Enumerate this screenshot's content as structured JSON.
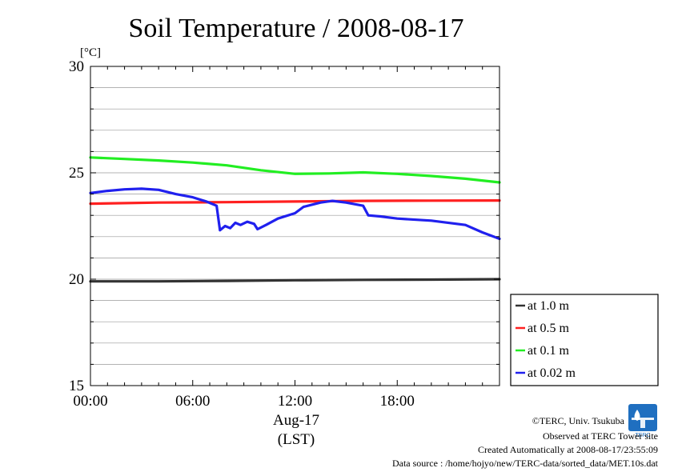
{
  "chart_data": {
    "type": "line",
    "title": "Soil Temperature / 2008-08-17",
    "ylabel": "[°C]",
    "date_label": "Aug-17",
    "time_zone_label": "(LST)",
    "ylim": [
      15,
      30
    ],
    "xlim_hours": [
      0,
      24
    ],
    "y_ticks": [
      15,
      20,
      25,
      30
    ],
    "y_tick_labels": [
      "15",
      "20",
      "25",
      "30"
    ],
    "x_ticks_hours": [
      0,
      6,
      12,
      18
    ],
    "x_tick_labels": [
      "00:00",
      "06:00",
      "12:00",
      "18:00"
    ],
    "grid": true,
    "grid_step": 1,
    "legend_position": "right",
    "series": [
      {
        "name": "at 1.0 m",
        "color": "#333333",
        "points": [
          [
            0,
            19.9
          ],
          [
            4,
            19.9
          ],
          [
            8,
            19.92
          ],
          [
            12,
            19.95
          ],
          [
            16,
            19.97
          ],
          [
            20,
            19.98
          ],
          [
            24,
            20.0
          ]
        ]
      },
      {
        "name": "at 0.5 m",
        "color": "#ff2020",
        "points": [
          [
            0,
            23.55
          ],
          [
            4,
            23.6
          ],
          [
            8,
            23.62
          ],
          [
            12,
            23.65
          ],
          [
            16,
            23.68
          ],
          [
            20,
            23.69
          ],
          [
            24,
            23.7
          ]
        ]
      },
      {
        "name": "at 0.1 m",
        "color": "#22ee22",
        "points": [
          [
            0,
            25.72
          ],
          [
            2,
            25.65
          ],
          [
            4,
            25.58
          ],
          [
            6,
            25.48
          ],
          [
            8,
            25.35
          ],
          [
            10,
            25.12
          ],
          [
            12,
            24.95
          ],
          [
            14,
            24.97
          ],
          [
            16,
            25.02
          ],
          [
            18,
            24.95
          ],
          [
            20,
            24.85
          ],
          [
            22,
            24.72
          ],
          [
            24,
            24.55
          ]
        ]
      },
      {
        "name": "at 0.02 m",
        "color": "#2020ee",
        "points": [
          [
            0,
            24.05
          ],
          [
            1,
            24.15
          ],
          [
            2,
            24.22
          ],
          [
            3,
            24.25
          ],
          [
            4,
            24.2
          ],
          [
            5,
            24.0
          ],
          [
            6,
            23.85
          ],
          [
            6.8,
            23.65
          ],
          [
            7.4,
            23.45
          ],
          [
            7.6,
            22.3
          ],
          [
            7.9,
            22.5
          ],
          [
            8.2,
            22.4
          ],
          [
            8.5,
            22.65
          ],
          [
            8.8,
            22.55
          ],
          [
            9.2,
            22.7
          ],
          [
            9.6,
            22.6
          ],
          [
            9.8,
            22.35
          ],
          [
            10.3,
            22.55
          ],
          [
            11,
            22.85
          ],
          [
            12,
            23.1
          ],
          [
            12.5,
            23.4
          ],
          [
            13.5,
            23.6
          ],
          [
            14.2,
            23.68
          ],
          [
            15,
            23.6
          ],
          [
            16,
            23.45
          ],
          [
            16.3,
            23.0
          ],
          [
            17,
            22.95
          ],
          [
            18,
            22.85
          ],
          [
            20,
            22.75
          ],
          [
            22,
            22.55
          ],
          [
            23,
            22.2
          ],
          [
            24,
            21.9
          ]
        ]
      }
    ]
  },
  "credits": {
    "copyright": "©TERC, Univ. Tsukuba",
    "observed": "Observed at TERC Tower site",
    "created": "Created Automatically at 2008-08-17/23:55:09",
    "source": "Data source : /home/hojyo/new/TERC-data/sorted_data/MET.10s.dat"
  },
  "logo": {
    "text": "TERC",
    "color": "#1f6fc0"
  }
}
